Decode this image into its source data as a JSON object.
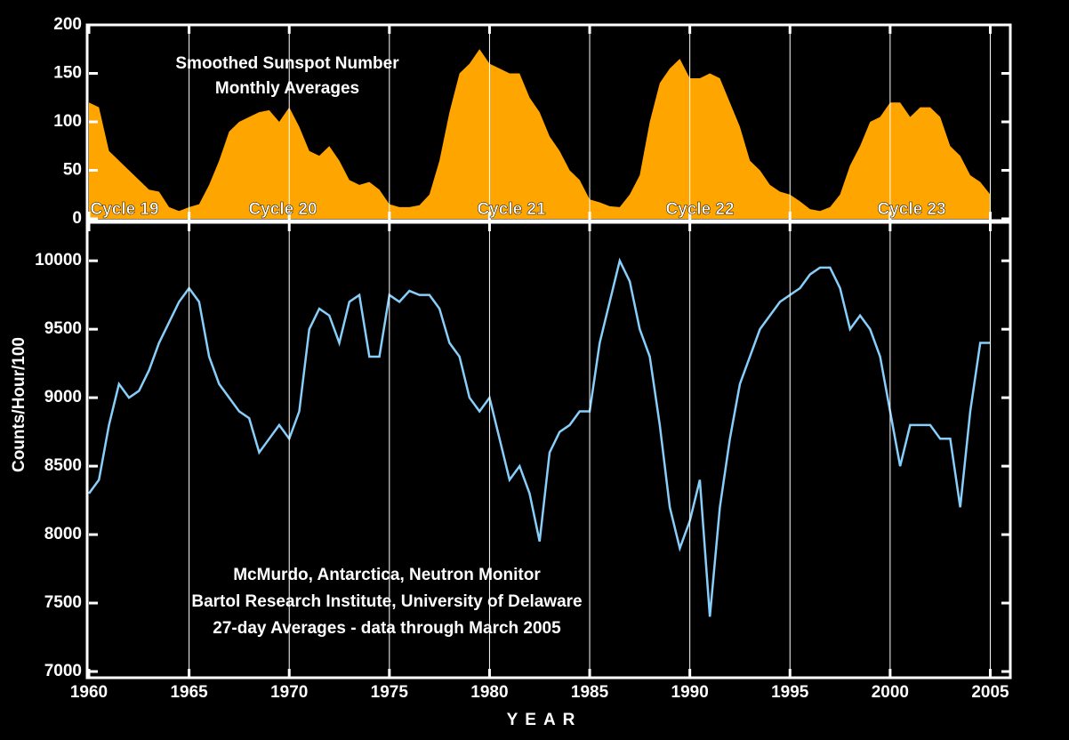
{
  "chart_data": [
    {
      "type": "area",
      "title_lines": [
        "Smoothed Sunspot Number",
        "Monthly Averages"
      ],
      "annotations": [
        "Cycle 19",
        "Cycle 20",
        "Cycle 21",
        "Cycle 22",
        "Cycle 23"
      ],
      "color": "#ffa500",
      "x": [
        1960,
        1960.5,
        1961,
        1961.5,
        1962,
        1962.5,
        1963,
        1963.5,
        1964,
        1964.5,
        1965,
        1965.5,
        1966,
        1966.5,
        1967,
        1967.5,
        1968,
        1968.5,
        1969,
        1969.5,
        1970,
        1970.5,
        1971,
        1971.5,
        1972,
        1972.5,
        1973,
        1973.5,
        1974,
        1974.5,
        1975,
        1975.5,
        1976,
        1976.5,
        1977,
        1977.5,
        1978,
        1978.5,
        1979,
        1979.5,
        1980,
        1980.5,
        1981,
        1981.5,
        1982,
        1982.5,
        1983,
        1983.5,
        1984,
        1984.5,
        1985,
        1985.5,
        1986,
        1986.5,
        1987,
        1987.5,
        1988,
        1988.5,
        1989,
        1989.5,
        1990,
        1990.5,
        1991,
        1991.5,
        1992,
        1992.5,
        1993,
        1993.5,
        1994,
        1994.5,
        1995,
        1995.5,
        1996,
        1996.5,
        1997,
        1997.5,
        1998,
        1998.5,
        1999,
        1999.5,
        2000,
        2000.5,
        2001,
        2001.5,
        2002,
        2002.5,
        2003,
        2003.5,
        2004,
        2004.5,
        2005
      ],
      "values": [
        120,
        115,
        70,
        60,
        50,
        40,
        30,
        28,
        12,
        8,
        12,
        15,
        35,
        60,
        90,
        100,
        105,
        110,
        112,
        100,
        115,
        95,
        70,
        65,
        75,
        60,
        40,
        35,
        38,
        30,
        15,
        12,
        12,
        14,
        25,
        60,
        110,
        150,
        160,
        175,
        160,
        155,
        150,
        150,
        125,
        110,
        85,
        70,
        50,
        40,
        20,
        17,
        13,
        12,
        25,
        45,
        100,
        140,
        155,
        165,
        145,
        145,
        150,
        145,
        120,
        95,
        60,
        50,
        35,
        28,
        25,
        18,
        10,
        8,
        12,
        25,
        55,
        75,
        100,
        105,
        120,
        120,
        105,
        115,
        115,
        105,
        75,
        65,
        45,
        38,
        25
      ],
      "xlim": [
        1960,
        2006
      ],
      "ylim": [
        0,
        200
      ],
      "yticks": [
        0,
        50,
        100,
        150,
        200
      ],
      "grid": true
    },
    {
      "type": "line",
      "notes": [
        "McMurdo, Antarctica, Neutron Monitor",
        "Bartol Research Institute, University of Delaware",
        "27-day Averages - data through March 2005"
      ],
      "ylabel": "Counts/Hour/100",
      "xlabel": "YEAR",
      "color": "#87cefa",
      "x": [
        1960,
        1960.5,
        1961,
        1961.5,
        1962,
        1962.5,
        1963,
        1963.5,
        1964,
        1964.5,
        1965,
        1965.5,
        1966,
        1966.5,
        1967,
        1967.5,
        1968,
        1968.5,
        1969,
        1969.5,
        1970,
        1970.5,
        1971,
        1971.5,
        1972,
        1972.5,
        1973,
        1973.5,
        1974,
        1974.5,
        1975,
        1975.5,
        1976,
        1976.5,
        1977,
        1977.5,
        1978,
        1978.5,
        1979,
        1979.5,
        1980,
        1980.5,
        1981,
        1981.5,
        1982,
        1982.5,
        1983,
        1983.5,
        1984,
        1984.5,
        1985,
        1985.5,
        1986,
        1986.5,
        1987,
        1987.5,
        1988,
        1988.5,
        1989,
        1989.5,
        1990,
        1990.5,
        1991,
        1991.5,
        1992,
        1992.5,
        1993,
        1993.5,
        1994,
        1994.5,
        1995,
        1995.5,
        1996,
        1996.5,
        1997,
        1997.5,
        1998,
        1998.5,
        1999,
        1999.5,
        2000,
        2000.5,
        2001,
        2001.5,
        2002,
        2002.5,
        2003,
        2003.5,
        2004,
        2004.5,
        2005
      ],
      "values": [
        8300,
        8400,
        8800,
        9100,
        9000,
        9050,
        9200,
        9400,
        9550,
        9700,
        9800,
        9700,
        9300,
        9100,
        9000,
        8900,
        8850,
        8600,
        8700,
        8800,
        8700,
        8900,
        9500,
        9650,
        9600,
        9400,
        9700,
        9750,
        9300,
        9300,
        9750,
        9700,
        9780,
        9750,
        9750,
        9650,
        9400,
        9300,
        9000,
        8900,
        9000,
        8700,
        8400,
        8500,
        8300,
        7950,
        8600,
        8750,
        8800,
        8900,
        8900,
        9400,
        9700,
        10000,
        9850,
        9500,
        9300,
        8800,
        8200,
        7900,
        8100,
        8400,
        7400,
        8200,
        8700,
        9100,
        9300,
        9500,
        9600,
        9700,
        9750,
        9800,
        9900,
        9950,
        9950,
        9800,
        9500,
        9600,
        9500,
        9300,
        8900,
        8500,
        8800,
        8800,
        8800,
        8700,
        8700,
        8200,
        8900,
        9400,
        9400
      ],
      "xlim": [
        1960,
        2006
      ],
      "ylim": [
        7000,
        10300
      ],
      "xticks": [
        1960,
        1965,
        1970,
        1975,
        1980,
        1985,
        1990,
        1995,
        2000,
        2005
      ],
      "yticks": [
        7000,
        7500,
        8000,
        8500,
        9000,
        9500,
        10000
      ],
      "grid": true
    }
  ]
}
